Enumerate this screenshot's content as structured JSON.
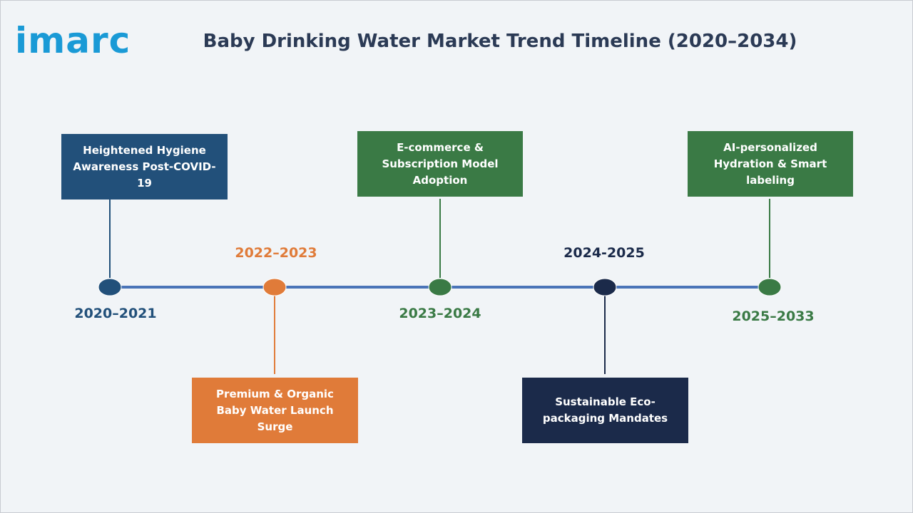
{
  "logo": {
    "text": "imarc",
    "color": "#1a9ad6"
  },
  "title": "Baby Drinking Water Market Trend Timeline (2020–2034)",
  "colors": {
    "line": "#4a74b8",
    "blue": "#22507a",
    "orange": "#e07b39",
    "green": "#3a7a45",
    "navy": "#1b2a4a"
  },
  "milestones": [
    {
      "year": "2020–2021",
      "event": "Heightened Hygiene Awareness Post-COVID-19",
      "color": "#22507a"
    },
    {
      "year": "2022–2023",
      "event": "Premium & Organic Baby Water Launch Surge",
      "color": "#e07b39"
    },
    {
      "year": "2023–2024",
      "event": "E-commerce & Subscription Model Adoption",
      "color": "#3a7a45"
    },
    {
      "year": "2024-2025",
      "event": "Sustainable Eco-packaging Mandates",
      "color": "#1b2a4a"
    },
    {
      "year": "2025–2033",
      "event": "AI-personalized Hydration & Smart labeling",
      "color": "#3a7a45"
    }
  ]
}
